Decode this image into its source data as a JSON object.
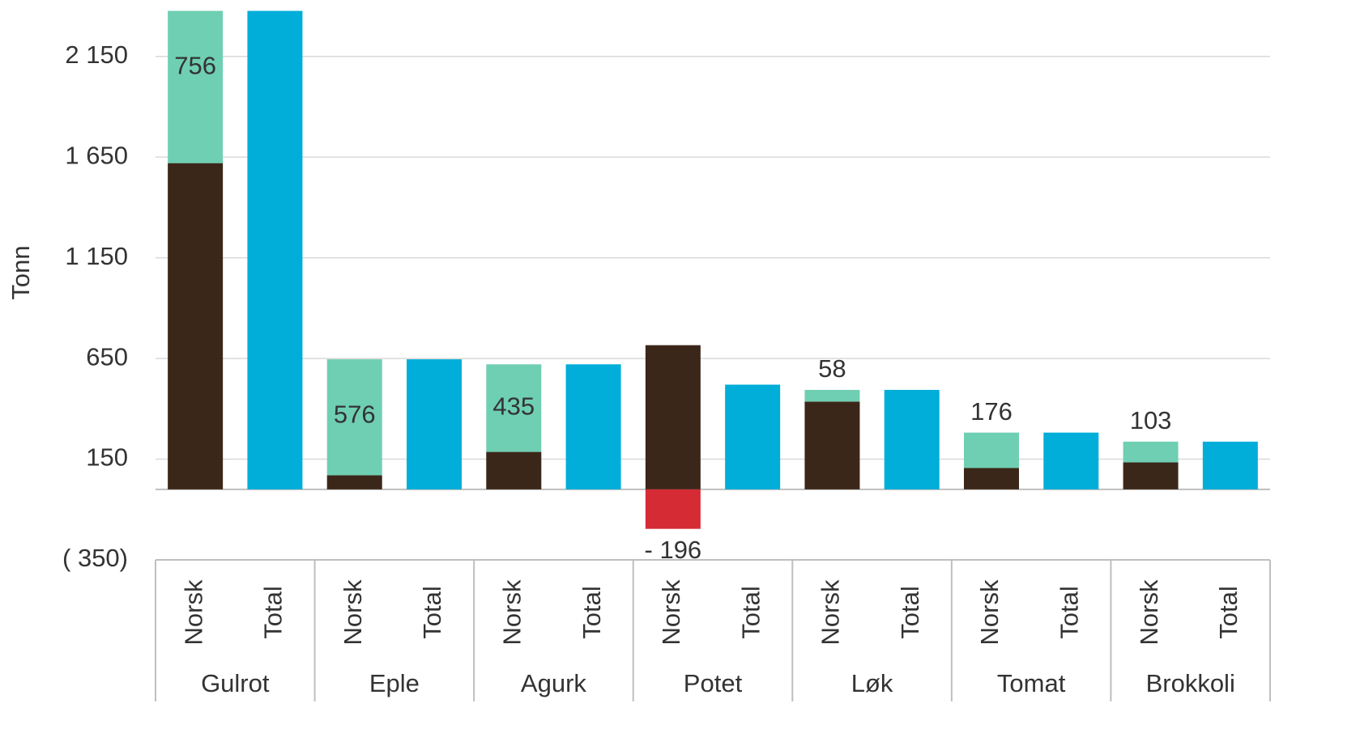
{
  "chart_data": {
    "type": "bar",
    "stacked": true,
    "ylabel": "Tonn",
    "groups": [
      "Gulrot",
      "Eple",
      "Agurk",
      "Potet",
      "Løk",
      "Tomat",
      "Brokkoli"
    ],
    "categories": [
      "Norsk",
      "Total",
      "Norsk",
      "Total",
      "Norsk",
      "Total",
      "Norsk",
      "Total",
      "Norsk",
      "Total",
      "Norsk",
      "Total",
      "Norsk",
      "Total"
    ],
    "series": [
      {
        "color": "#3b2719",
        "values": [
          1620,
          null,
          70,
          null,
          186,
          null,
          716,
          null,
          436,
          null,
          106,
          null,
          134,
          null
        ]
      },
      {
        "color": "#6fcfb2",
        "show_labels": true,
        "values": [
          756,
          null,
          576,
          null,
          435,
          null,
          null,
          null,
          58,
          null,
          176,
          null,
          103,
          null
        ]
      },
      {
        "color": "#d52b35",
        "show_labels": true,
        "values": [
          null,
          null,
          null,
          null,
          null,
          null,
          -196,
          null,
          null,
          null,
          null,
          null,
          null,
          null
        ],
        "value_labels": [
          null,
          null,
          null,
          null,
          null,
          null,
          "- 196",
          null,
          null,
          null,
          null,
          null,
          null,
          null
        ]
      },
      {
        "color": "#00aed9",
        "values": [
          null,
          2376,
          null,
          646,
          null,
          621,
          null,
          520,
          null,
          494,
          null,
          282,
          null,
          237
        ]
      }
    ],
    "ylim": [
      -350,
      2430
    ],
    "yticks": [
      {
        "value": -350,
        "label": "( 350)"
      },
      150,
      650,
      {
        "value": 1150,
        "label": "1 150"
      },
      {
        "value": 1650,
        "label": "1 650"
      },
      {
        "value": 2150,
        "label": "2 150"
      }
    ],
    "grid": true
  }
}
